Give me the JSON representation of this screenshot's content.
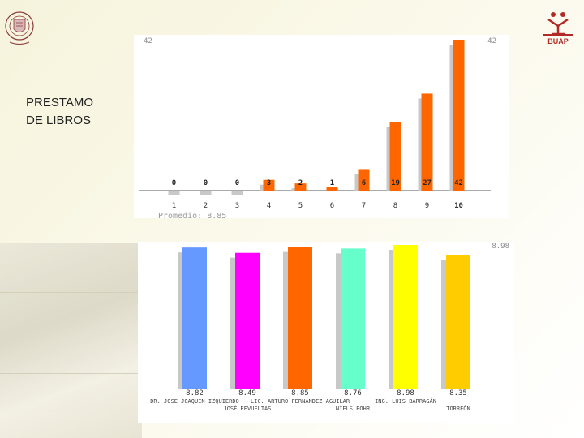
{
  "slide": {
    "title_line1": "PRESTAMO",
    "title_line2": "DE LIBROS",
    "logo_right_text": "BUAP"
  },
  "chart_data": [
    {
      "type": "bar",
      "title": "",
      "categories": [
        "1",
        "2",
        "3",
        "4",
        "5",
        "6",
        "7",
        "8",
        "9",
        "10"
      ],
      "values": [
        0,
        0,
        0,
        3,
        2,
        1,
        6,
        19,
        27,
        42
      ],
      "ymax_label": "42",
      "average_label": "Promedio: 8.85",
      "ylim": [
        0,
        42
      ],
      "colors": {
        "bar": "#ff6600",
        "shadow": "#c8c8c8",
        "zero": "#c8c8c8"
      }
    },
    {
      "type": "bar",
      "title": "",
      "categories": [
        "DR. JOSE JOAQUIN IZQUIERDO",
        "JOSÉ REVUELTAS",
        "LIC. ARTURO FERNÁNDEZ AGUILAR",
        "NIELS BOHR",
        "ING. LUIS BARRAGÁN",
        "TORREÓN"
      ],
      "category_lines": [
        [
          "DR. JOSE JOAQUIN IZQUIERDO",
          ""
        ],
        [
          "",
          "JOSÉ REVUELTAS"
        ],
        [
          "LIC. ARTURO FERNÁNDEZ AGUILAR",
          ""
        ],
        [
          "",
          "NIELS BOHR"
        ],
        [
          "ING. LUIS BARRAGÁN",
          ""
        ],
        [
          "",
          "TORREÓN"
        ]
      ],
      "values": [
        8.82,
        8.49,
        8.85,
        8.76,
        8.98,
        8.35
      ],
      "value_labels": [
        "8.82",
        "8.49",
        "8.85",
        "8.76",
        "8.98",
        "8.35"
      ],
      "ymax_label": "8.98",
      "colors": [
        "#6699ff",
        "#ff00ff",
        "#ff6600",
        "#66ffcc",
        "#ffff00",
        "#ffcc00"
      ],
      "shadow": "#c8c8c8"
    }
  ]
}
